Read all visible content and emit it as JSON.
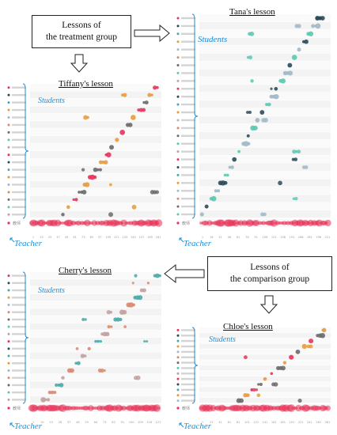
{
  "callouts": {
    "treatment": "Lessons of\nthe treatment group",
    "comparison": "Lessons of\nthe comparison group"
  },
  "labels": {
    "students": "Students",
    "teacher": "Teacher"
  },
  "panels": [
    {
      "id": "tiffany",
      "title": "Tiffany's lesson",
      "ticks": [
        "1",
        "13",
        "25",
        "37",
        "49",
        "61",
        "73",
        "85",
        "97",
        "109",
        "121",
        "133",
        "145",
        "157",
        "169",
        "181"
      ],
      "teacher_label": "教师"
    },
    {
      "id": "tana",
      "title": "Tana's lesson",
      "ticks": [
        "1",
        "16",
        "31",
        "46",
        "61",
        "76",
        "91",
        "106",
        "121",
        "136",
        "151",
        "166",
        "181",
        "196",
        "211"
      ],
      "teacher_label": "教师"
    },
    {
      "id": "cherry",
      "title": "Cherry's lesson",
      "ticks": [
        "1",
        "10",
        "19",
        "28",
        "37",
        "46",
        "55",
        "64",
        "73",
        "82",
        "91",
        "100",
        "109",
        "118",
        "127"
      ],
      "teacher_label": "教师"
    },
    {
      "id": "chloe",
      "title": "Chloe's lesson",
      "ticks": [
        "1",
        "21",
        "41",
        "61",
        "81",
        "101",
        "121",
        "141",
        "161",
        "181",
        "201",
        "221",
        "241",
        "261",
        "281"
      ],
      "teacher_label": "教师"
    }
  ],
  "colors": {
    "teacher": "#e8335a",
    "student_palette": [
      "#e8335a",
      "#2a4a5a",
      "#4aa8a8",
      "#e89a3a",
      "#a0b8c8",
      "#d88870",
      "#6a6a6a",
      "#5ac8b0",
      "#c0a0a0"
    ],
    "accent_blue": "#1f8fd6"
  }
}
